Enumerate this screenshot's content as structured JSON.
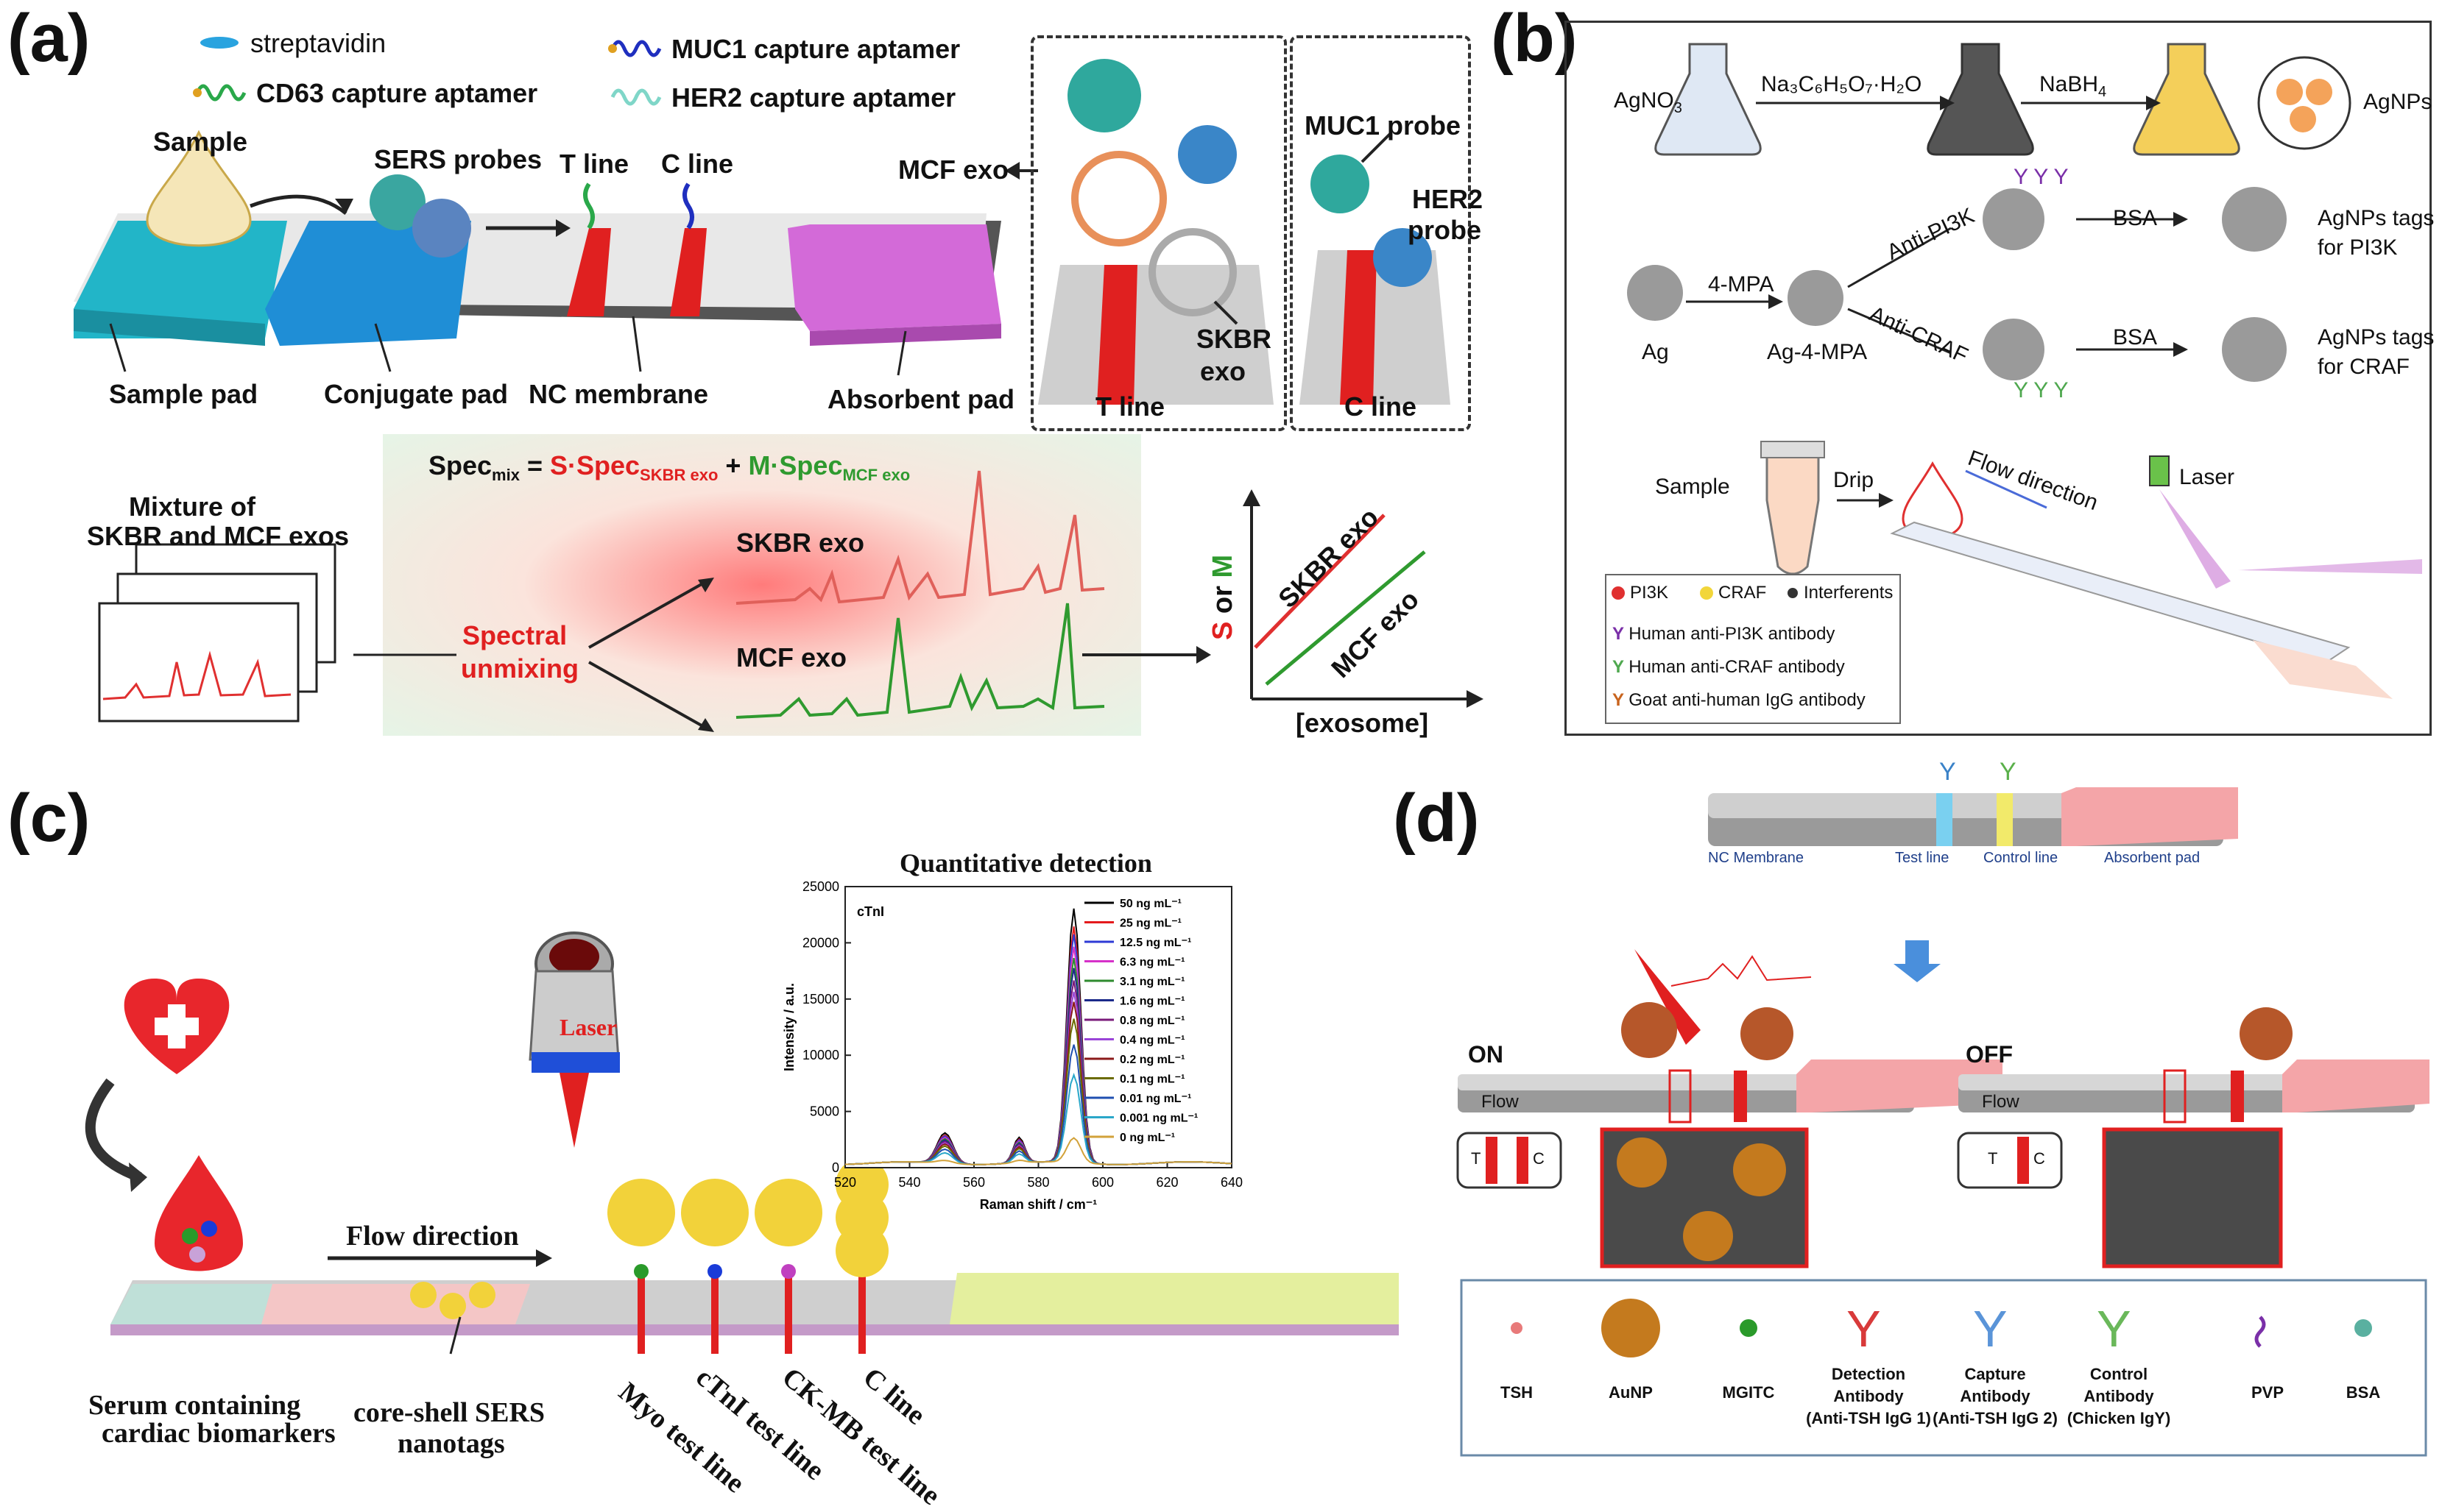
{
  "panels": {
    "a": {
      "letter": "(a)",
      "legend": [
        "streptavidin",
        "CD63 capture aptamer",
        "MUC1 capture aptamer",
        "HER2 capture aptamer"
      ],
      "labels": {
        "sample": "Sample",
        "sers_probes": "SERS probes",
        "t_line": "T line",
        "c_line": "C line",
        "sample_pad": "Sample pad",
        "conjugate_pad": "Conjugate pad",
        "nc_membrane": "NC membrane",
        "absorbent_pad": "Absorbent pad",
        "mcf_exo": "MCF exo",
        "skbr_exo_1": "SKBR",
        "skbr_exo_2": "exo",
        "t_line_inset": "T line",
        "c_line_inset": "C line",
        "muc1_probe": "MUC1 probe",
        "her2_probe_1": "HER2",
        "her2_probe_2": "probe",
        "mixture_1": "Mixture of",
        "mixture_2": "SKBR and MCF exos",
        "unmix_1": "Spectral",
        "unmix_2": "unmixing",
        "spec_mix": "Spec",
        "spec_mix_sub": "mix",
        "eq": " = ",
        "s_term": "S·Spec",
        "s_sub": "SKBR exo",
        "plus": " + ",
        "m_term": "M·Spec",
        "m_sub": "MCF exo",
        "skbr_trace": "SKBR exo",
        "mcf_trace": "MCF exo",
        "axis_y_s": "S",
        "axis_y_or": " or ",
        "axis_y_m": "M",
        "axis_x": "[exosome]",
        "line_skbr": "SKBR exo",
        "line_mcf": "MCF exo"
      }
    },
    "b": {
      "letter": "(b)",
      "labels": {
        "agno3": "AgNO",
        "agno3_sub": "3",
        "citrate": "Na₃C₆H₅O₇·H₂O",
        "nabh4": "NaBH",
        "nabh4_sub": "4",
        "agnps": "AgNPs",
        "ag": "Ag",
        "mpa": "4-MPA",
        "ag_mpa": "Ag-4-MPA",
        "anti_pi3k": "Anti-PI3K",
        "anti_craf": "Anti-CRAF",
        "bsa1": "BSA",
        "bsa2": "BSA",
        "tags_pi3k_1": "AgNPs tags",
        "tags_pi3k_2": "for PI3K",
        "tags_craf_1": "AgNPs tags",
        "tags_craf_2": "for CRAF",
        "sample": "Sample",
        "drip": "Drip",
        "flow": "Flow direction",
        "laser": "Laser"
      },
      "legend": {
        "pi3k": "PI3K",
        "craf": "CRAF",
        "interferents": "Interferents",
        "ab_pi3k": "Human anti-PI3K antibody",
        "ab_craf": "Human anti-CRAF antibody",
        "ab_goat": "Goat anti-human IgG antibody"
      }
    },
    "c": {
      "letter": "(c)",
      "labels": {
        "flow": "Flow direction",
        "laser": "Laser",
        "serum_1": "Serum containing",
        "serum_2": "cardiac biomarkers",
        "nanotag_1": "core-shell SERS",
        "nanotag_2": "nanotags",
        "myo": "Myo test line",
        "ctni": "cTnI test line",
        "ckmb": "CK-MB test line",
        "cline": "C line"
      },
      "chart_data": {
        "type": "line",
        "title": "Quantitative detection",
        "annotation": "cTnI",
        "xlabel": "Raman shift / cm⁻¹",
        "ylabel": "Intensity / a.u.",
        "xlim": [
          520,
          640
        ],
        "ylim": [
          0,
          25000
        ],
        "xticks": [
          520,
          540,
          560,
          580,
          600,
          620,
          640
        ],
        "yticks": [
          0,
          5000,
          10000,
          15000,
          20000,
          25000
        ],
        "peak_center": 591,
        "series": [
          {
            "name": "50 ng mL⁻¹",
            "color": "#000000",
            "peak": 22600
          },
          {
            "name": "25 ng mL⁻¹",
            "color": "#e41a1c",
            "peak": 21000
          },
          {
            "name": "12.5 ng mL⁻¹",
            "color": "#2e3bd6",
            "peak": 20300
          },
          {
            "name": "6.3 ng mL⁻¹",
            "color": "#d631c9",
            "peak": 19200
          },
          {
            "name": "3.1 ng mL⁻¹",
            "color": "#2e8b2e",
            "peak": 18200
          },
          {
            "name": "1.6 ng mL⁻¹",
            "color": "#1b2a8a",
            "peak": 17300
          },
          {
            "name": "0.8 ng mL⁻¹",
            "color": "#7a1a7a",
            "peak": 16200
          },
          {
            "name": "0.4 ng mL⁻¹",
            "color": "#9a44d8",
            "peak": 15200
          },
          {
            "name": "0.2 ng mL⁻¹",
            "color": "#8b1a1a",
            "peak": 14300
          },
          {
            "name": "0.1 ng mL⁻¹",
            "color": "#6b6b00",
            "peak": 12800
          },
          {
            "name": "0.01 ng mL⁻¹",
            "color": "#1f4fb0",
            "peak": 10500
          },
          {
            "name": "0.001 ng mL⁻¹",
            "color": "#2aa7c9",
            "peak": 7800
          },
          {
            "name": "0 ng mL⁻¹",
            "color": "#d2a23a",
            "peak": 2200
          }
        ]
      }
    },
    "d": {
      "letter": "(d)",
      "strip_labels": {
        "nc": "NC Membrane",
        "test": "Test line",
        "control": "Control line",
        "absorbent": "Absorbent pad"
      },
      "on": "ON",
      "off": "OFF",
      "flow_on": "Flow",
      "flow_off": "Flow",
      "t": "T",
      "c": "C",
      "t2": "T",
      "c2": "C",
      "legend": [
        {
          "l1": "TSH",
          "l2": ""
        },
        {
          "l1": "AuNP",
          "l2": ""
        },
        {
          "l1": "MGITC",
          "l2": ""
        },
        {
          "l1": "Detection",
          "l2": "Antibody",
          "l3": "(Anti-TSH IgG 1)"
        },
        {
          "l1": "Capture",
          "l2": "Antibody",
          "l3": "(Anti-TSH IgG 2)"
        },
        {
          "l1": "Control",
          "l2": "Antibody",
          "l3": "(Chicken IgY)"
        },
        {
          "l1": "PVP",
          "l2": ""
        },
        {
          "l1": "BSA",
          "l2": ""
        }
      ]
    }
  }
}
